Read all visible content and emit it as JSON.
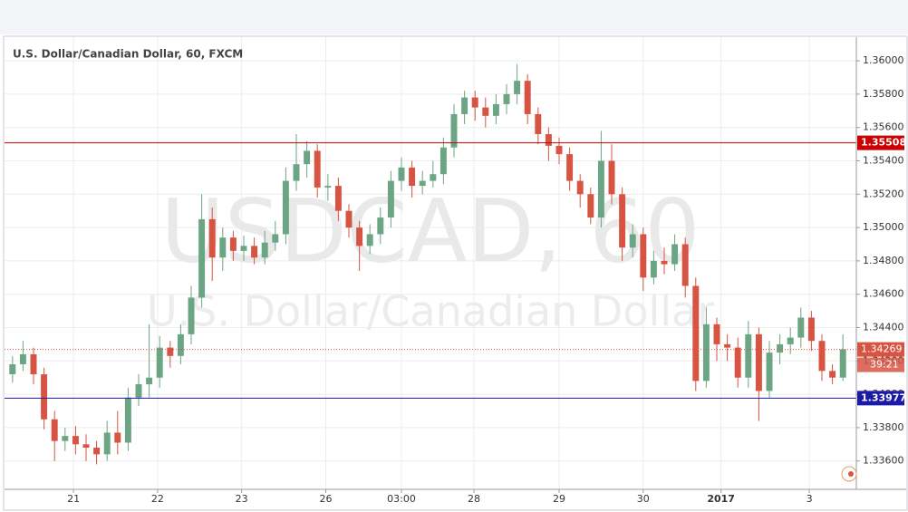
{
  "chart_data": {
    "type": "candlestick",
    "title": "U.S. Dollar/Canadian Dollar, 60, FXCM",
    "watermark": "USDCAD, 60",
    "watermark_subtitle": "U.S. Dollar/Canadian Dollar",
    "up_color": "#6ba583",
    "down_color": "#d75442",
    "open": [
      1.3412,
      1.3418,
      1.3424,
      1.3412,
      1.3385,
      1.3372,
      1.3375,
      1.337,
      1.3368,
      1.3364,
      1.3377,
      1.3371,
      1.3398,
      1.3406,
      1.341,
      1.3428,
      1.3423,
      1.3436,
      1.3458,
      1.3505,
      1.3482,
      1.3494,
      1.3486,
      1.3489,
      1.3482,
      1.3491,
      1.3496,
      1.3528,
      1.3538,
      1.3546,
      1.3524,
      1.3525,
      1.351,
      1.35,
      1.3489,
      1.3496,
      1.3506,
      1.3528,
      1.3536,
      1.3525,
      1.3528,
      1.3532,
      1.3548,
      1.3568,
      1.3578,
      1.3572,
      1.3567,
      1.3574,
      1.358,
      1.3588,
      1.3568,
      1.3556,
      1.3549,
      1.3544,
      1.3528,
      1.352,
      1.3506,
      1.354,
      1.352,
      1.3488,
      1.3496,
      1.347,
      1.348,
      1.3478,
      1.349,
      1.3465,
      1.3408,
      1.3442,
      1.343,
      1.3428,
      1.341,
      1.3436,
      1.3402,
      1.3425,
      1.343,
      1.3434,
      1.3446,
      1.3432,
      1.3414,
      1.341
    ],
    "high": [
      1.3423,
      1.3432,
      1.3428,
      1.3416,
      1.339,
      1.338,
      1.3381,
      1.3376,
      1.3372,
      1.3384,
      1.339,
      1.3404,
      1.3412,
      1.3442,
      1.3435,
      1.3432,
      1.3442,
      1.3465,
      1.352,
      1.3512,
      1.35,
      1.3498,
      1.3495,
      1.3494,
      1.3498,
      1.3504,
      1.3536,
      1.3556,
      1.3552,
      1.355,
      1.3532,
      1.353,
      1.3514,
      1.3504,
      1.3502,
      1.3512,
      1.3534,
      1.3542,
      1.354,
      1.3534,
      1.354,
      1.3554,
      1.3574,
      1.3582,
      1.3582,
      1.3578,
      1.358,
      1.3586,
      1.3598,
      1.3592,
      1.3572,
      1.356,
      1.3554,
      1.3548,
      1.3532,
      1.3524,
      1.3558,
      1.355,
      1.3524,
      1.3502,
      1.35,
      1.3486,
      1.3488,
      1.3496,
      1.3494,
      1.347,
      1.3452,
      1.3446,
      1.3436,
      1.3434,
      1.3444,
      1.344,
      1.3432,
      1.3436,
      1.344,
      1.3452,
      1.345,
      1.3436,
      1.3418,
      1.3436
    ],
    "low": [
      1.3407,
      1.3414,
      1.3406,
      1.3379,
      1.336,
      1.3366,
      1.3364,
      1.336,
      1.3358,
      1.336,
      1.3364,
      1.3366,
      1.3393,
      1.3398,
      1.3404,
      1.3416,
      1.3418,
      1.343,
      1.3452,
      1.3468,
      1.3474,
      1.348,
      1.348,
      1.3478,
      1.3478,
      1.3486,
      1.349,
      1.3522,
      1.353,
      1.3518,
      1.3516,
      1.3504,
      1.3494,
      1.3474,
      1.3484,
      1.349,
      1.35,
      1.3522,
      1.3518,
      1.352,
      1.3524,
      1.3526,
      1.3542,
      1.3562,
      1.3564,
      1.356,
      1.3562,
      1.3568,
      1.3574,
      1.3562,
      1.355,
      1.354,
      1.3538,
      1.3522,
      1.3512,
      1.3502,
      1.35,
      1.3514,
      1.348,
      1.3482,
      1.3462,
      1.3466,
      1.3472,
      1.3474,
      1.3458,
      1.3402,
      1.3404,
      1.342,
      1.342,
      1.3404,
      1.3404,
      1.3384,
      1.3398,
      1.3418,
      1.3424,
      1.3428,
      1.3426,
      1.3408,
      1.3406,
      1.3408
    ],
    "close": [
      1.3418,
      1.3424,
      1.3412,
      1.3385,
      1.3372,
      1.3375,
      1.337,
      1.3368,
      1.3364,
      1.3377,
      1.3371,
      1.3398,
      1.3406,
      1.341,
      1.3428,
      1.3423,
      1.3436,
      1.3458,
      1.3505,
      1.3482,
      1.3494,
      1.3486,
      1.3489,
      1.3482,
      1.3491,
      1.3496,
      1.3528,
      1.3538,
      1.3546,
      1.3524,
      1.3525,
      1.351,
      1.35,
      1.3489,
      1.3496,
      1.3506,
      1.3528,
      1.3536,
      1.3525,
      1.3528,
      1.3532,
      1.3548,
      1.3568,
      1.3578,
      1.3572,
      1.3567,
      1.3574,
      1.358,
      1.3588,
      1.3568,
      1.3556,
      1.3549,
      1.3544,
      1.3528,
      1.352,
      1.3506,
      1.354,
      1.352,
      1.3488,
      1.3496,
      1.347,
      1.348,
      1.3478,
      1.349,
      1.3465,
      1.3408,
      1.3442,
      1.343,
      1.3428,
      1.341,
      1.3436,
      1.3402,
      1.3425,
      1.343,
      1.3434,
      1.3446,
      1.3432,
      1.3414,
      1.341,
      1.3427
    ],
    "xlim": [
      0,
      80
    ],
    "xticks": [
      {
        "value": 6.3,
        "label": "21"
      },
      {
        "value": 14.3,
        "label": "22"
      },
      {
        "value": 22.3,
        "label": "23"
      },
      {
        "value": 30.3,
        "label": "26"
      },
      {
        "value": 37.5,
        "label": "03:00"
      },
      {
        "value": 44.4,
        "label": "28"
      },
      {
        "value": 52.5,
        "label": "29"
      },
      {
        "value": 60.5,
        "label": "30"
      },
      {
        "value": 67.9,
        "label": "2017"
      },
      {
        "value": 76.3,
        "label": "3"
      }
    ],
    "ylim": [
      1.3343,
      1.3612
    ],
    "yticks": [
      {
        "value": 1.336,
        "label": "1.33600"
      },
      {
        "value": 1.338,
        "label": "1.33800"
      },
      {
        "value": 1.34,
        "label": "1.34000"
      },
      {
        "value": 1.342,
        "label": "1.34200"
      },
      {
        "value": 1.344,
        "label": "1.34400"
      },
      {
        "value": 1.346,
        "label": "1.34600"
      },
      {
        "value": 1.348,
        "label": "1.34800"
      },
      {
        "value": 1.35,
        "label": "1.35000"
      },
      {
        "value": 1.352,
        "label": "1.35200"
      },
      {
        "value": 1.354,
        "label": "1.35400"
      },
      {
        "value": 1.356,
        "label": "1.35600"
      },
      {
        "value": 1.358,
        "label": "1.35800"
      },
      {
        "value": 1.36,
        "label": "1.36000"
      }
    ],
    "grid": true,
    "levels": [
      {
        "value": 1.35508,
        "color": "#cc0000"
      },
      {
        "value": 1.33977,
        "color": "#1a1aa8"
      }
    ],
    "last_price": {
      "value": 1.34269,
      "color": "#d75442",
      "countdown": "39:21"
    }
  }
}
